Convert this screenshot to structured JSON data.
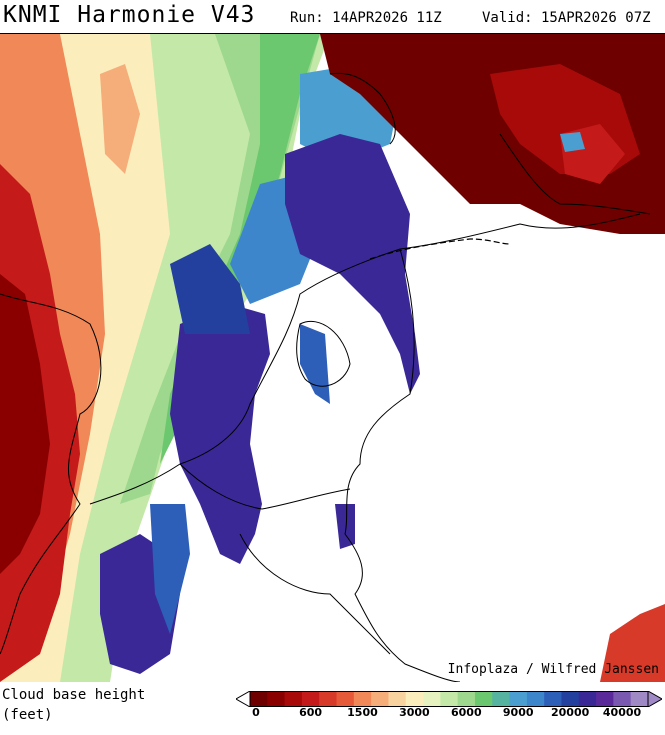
{
  "header": {
    "model_title": "KNMI Harmonie V43",
    "run": "Run: 14APR2026 11Z",
    "valid": "Valid: 15APR2026 07Z"
  },
  "map": {
    "credit": "Infoplaza / Wilfred Janssen",
    "field": "cloud base height"
  },
  "legend": {
    "title_line1": "Cloud base height",
    "title_line2": "(feet)",
    "colors": [
      "#6e0000",
      "#8a0000",
      "#a80a0a",
      "#c41a1a",
      "#d83a2a",
      "#e65a3a",
      "#f08858",
      "#f5ad7a",
      "#f8d3a0",
      "#fbeebc",
      "#e6f3c0",
      "#c4e8a8",
      "#9ed88e",
      "#6cc86e",
      "#55b3a0",
      "#4a9fd0",
      "#3e86cc",
      "#2d5fb8",
      "#24409e",
      "#3a2896",
      "#5a2a9a",
      "#7a5ab0",
      "#a08ac6"
    ],
    "ticks": [
      "0",
      "600",
      "1500",
      "3000",
      "6000",
      "9000",
      "20000",
      "40000"
    ]
  }
}
